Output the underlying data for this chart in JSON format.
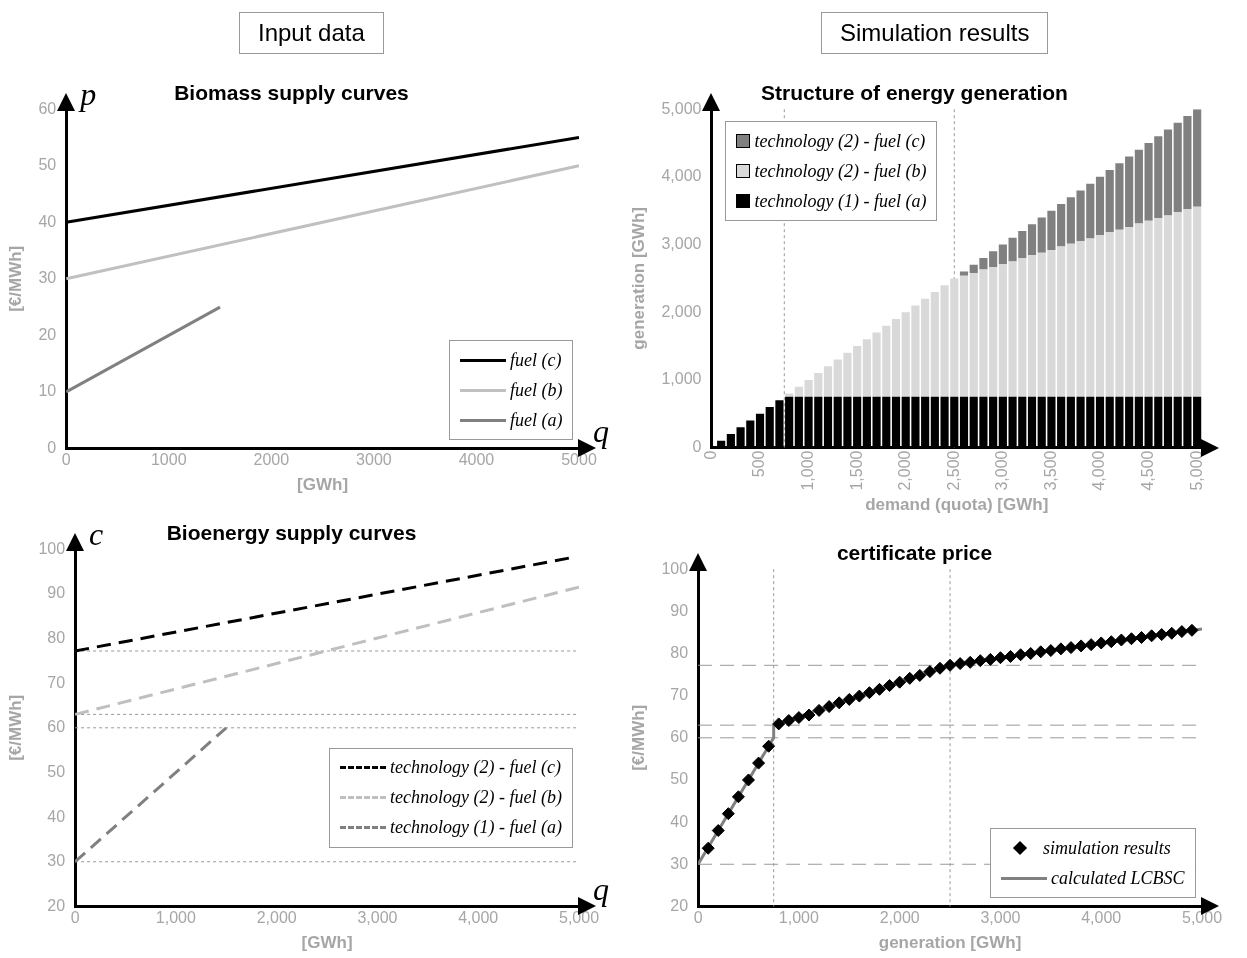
{
  "chart_data": [
    {
      "type": "line",
      "title": "Input data",
      "subtitle": "Biomass supply curves",
      "xlabel": "[GWh]",
      "ylabel": "[€/MWh]",
      "annotations": [
        "p",
        "q"
      ],
      "legend": "bottom right",
      "xlim": [
        0,
        5000
      ],
      "xticks": [
        0,
        1000,
        2000,
        3000,
        4000,
        5000
      ],
      "ylim": [
        0,
        60
      ],
      "yticks": [
        0,
        10,
        20,
        30,
        40,
        50,
        60
      ],
      "series": [
        {
          "name": "fuel (c)",
          "color": "#000000",
          "x": [
            0,
            5000
          ],
          "values": [
            40,
            55
          ]
        },
        {
          "name": "fuel (b)",
          "color": "#c0c0c0",
          "x": [
            0,
            5000
          ],
          "values": [
            30,
            50
          ]
        },
        {
          "name": "fuel (a)",
          "color": "#808080",
          "x": [
            0,
            1500
          ],
          "values": [
            10,
            25
          ]
        }
      ]
    },
    {
      "type": "bar",
      "stacked": true,
      "title": "Simulation results",
      "subtitle": "Structure of energy generation",
      "xlabel": "demand (quota) [GWh]",
      "ylabel": "generation [GWh]",
      "legend": "top left",
      "xlim": [
        0,
        5050
      ],
      "xticks": [
        0,
        {
          "value": 500,
          "label": "500"
        },
        {
          "value": 1000,
          "label": "1,000"
        },
        {
          "value": 1500,
          "label": "1,500"
        },
        {
          "value": 2000,
          "label": "2,000"
        },
        {
          "value": 2500,
          "label": "2,500"
        },
        {
          "value": 3000,
          "label": "3,000"
        },
        {
          "value": 3500,
          "label": "3,500"
        },
        {
          "value": 4000,
          "label": "4,000"
        },
        {
          "value": 4500,
          "label": "4,500"
        },
        {
          "value": 5000,
          "label": "5,000"
        }
      ],
      "ylim": [
        0,
        5000
      ],
      "yticks": [
        0,
        {
          "value": 1000,
          "label": "1,000"
        },
        {
          "value": 2000,
          "label": "2,000"
        },
        {
          "value": 3000,
          "label": "3,000"
        },
        {
          "value": 4000,
          "label": "4,000"
        },
        {
          "value": 5000,
          "label": "5,000"
        }
      ],
      "ref_lines": [
        {
          "axis": "x",
          "value": 750,
          "color": "#999999",
          "line_style": "dotted"
        },
        {
          "axis": "x",
          "value": 2500,
          "color": "#999999",
          "line_style": "dotted"
        }
      ],
      "x": [
        100,
        200,
        300,
        400,
        500,
        600,
        700,
        800,
        900,
        1000,
        1100,
        1200,
        1300,
        1400,
        1500,
        1600,
        1700,
        1800,
        1900,
        2000,
        2100,
        2200,
        2300,
        2400,
        2500,
        2600,
        2700,
        2800,
        2900,
        3000,
        3100,
        3200,
        3300,
        3400,
        3500,
        3600,
        3700,
        3800,
        3900,
        4000,
        4100,
        4200,
        4300,
        4400,
        4500,
        4600,
        4700,
        4800,
        4900,
        5000
      ],
      "series": [
        {
          "name": "technology (1) - fuel (a)",
          "color": "#000000",
          "values": [
            100,
            200,
            300,
            400,
            500,
            600,
            700,
            750,
            750,
            750,
            750,
            750,
            750,
            750,
            750,
            750,
            750,
            750,
            750,
            750,
            750,
            750,
            750,
            750,
            750,
            750,
            750,
            750,
            750,
            750,
            750,
            750,
            750,
            750,
            750,
            750,
            750,
            750,
            750,
            750,
            750,
            750,
            750,
            750,
            750,
            750,
            750,
            750,
            750,
            750
          ]
        },
        {
          "name": "technology (2) - fuel (b)",
          "color": "#d9d9d9",
          "values": [
            null,
            null,
            null,
            null,
            null,
            null,
            null,
            50,
            150,
            250,
            350,
            450,
            550,
            650,
            750,
            850,
            950,
            1050,
            1150,
            1250,
            1350,
            1450,
            1550,
            1650,
            1750,
            1790,
            1830,
            1880,
            1920,
            1960,
            2000,
            2050,
            2090,
            2130,
            2170,
            2220,
            2260,
            2300,
            2340,
            2390,
            2430,
            2470,
            2510,
            2560,
            2600,
            2640,
            2680,
            2730,
            2770,
            2810
          ]
        },
        {
          "name": "technology (2) - fuel (c)",
          "color": "#808080",
          "values": [
            null,
            null,
            null,
            null,
            null,
            null,
            null,
            null,
            null,
            null,
            null,
            null,
            null,
            null,
            null,
            null,
            null,
            null,
            null,
            null,
            null,
            null,
            null,
            null,
            null,
            60,
            120,
            170,
            230,
            290,
            350,
            400,
            460,
            520,
            580,
            630,
            690,
            750,
            810,
            860,
            920,
            980,
            1040,
            1090,
            1150,
            1210,
            1270,
            1320,
            1380,
            1440
          ]
        }
      ]
    },
    {
      "type": "line",
      "title": "Bioenergy supply curves",
      "xlabel": "[GWh]",
      "ylabel": "[€/MWh]",
      "annotations": [
        "c",
        "q"
      ],
      "legend": "right",
      "xlim": [
        0,
        5000
      ],
      "xticks": [
        0,
        {
          "value": 1000,
          "label": "1,000"
        },
        {
          "value": 2000,
          "label": "2,000"
        },
        {
          "value": 3000,
          "label": "3,000"
        },
        {
          "value": 4000,
          "label": "4,000"
        },
        {
          "value": 5000,
          "label": "5,000"
        }
      ],
      "ylim": [
        20,
        100
      ],
      "yticks": [
        20,
        30,
        40,
        50,
        60,
        70,
        80,
        90,
        100
      ],
      "ref_lines": [
        {
          "axis": "y",
          "value": 77.2,
          "color": "#999999",
          "line_style": "dotted"
        },
        {
          "axis": "y",
          "value": 63,
          "color": "#999999",
          "line_style": "dotted"
        },
        {
          "axis": "y",
          "value": 60,
          "color": "#999999",
          "line_style": "dotted"
        },
        {
          "axis": "y",
          "value": 30,
          "color": "#999999",
          "line_style": "dotted"
        }
      ],
      "series": [
        {
          "name": "technology (2) - fuel (c)",
          "color": "#000000",
          "line_style": "dashed",
          "x": [
            0,
            4900
          ],
          "values": [
            77.2,
            98
          ]
        },
        {
          "name": "technology (2) - fuel (b)",
          "color": "#bfbfbf",
          "line_style": "dashed",
          "x": [
            0,
            5000
          ],
          "values": [
            63,
            91.5
          ]
        },
        {
          "name": "technology (1) - fuel (a)",
          "color": "#808080",
          "line_style": "dashed",
          "x": [
            0,
            1500
          ],
          "values": [
            30,
            60
          ]
        }
      ]
    },
    {
      "type": "scatter",
      "title": "certificate price",
      "xlabel": "generation [GWh]",
      "ylabel": "[€/MWh]",
      "legend": "bottom right",
      "xlim": [
        0,
        5000
      ],
      "xticks": [
        0,
        {
          "value": 1000,
          "label": "1,000"
        },
        {
          "value": 2000,
          "label": "2,000"
        },
        {
          "value": 3000,
          "label": "3,000"
        },
        {
          "value": 4000,
          "label": "4,000"
        },
        {
          "value": 5000,
          "label": "5,000"
        }
      ],
      "ylim": [
        20,
        100
      ],
      "yticks": [
        20,
        30,
        40,
        50,
        60,
        70,
        80,
        90,
        100
      ],
      "ref_lines": [
        {
          "axis": "y",
          "value": 77.2,
          "color": "#999999",
          "line_style": "dashed"
        },
        {
          "axis": "y",
          "value": 63,
          "color": "#999999",
          "line_style": "dashed"
        },
        {
          "axis": "y",
          "value": 60,
          "color": "#999999",
          "line_style": "dashed"
        },
        {
          "axis": "y",
          "value": 30,
          "color": "#999999",
          "line_style": "dashed"
        },
        {
          "axis": "x",
          "value": 750,
          "color": "#999999",
          "line_style": "dotted"
        },
        {
          "axis": "x",
          "value": 2500,
          "color": "#999999",
          "line_style": "dotted"
        }
      ],
      "series": [
        {
          "name": "simulation results",
          "type": "scatter",
          "marker": "diamond",
          "color": "#000000",
          "x": [
            100,
            200,
            300,
            400,
            500,
            600,
            700,
            800,
            900,
            1000,
            1100,
            1200,
            1300,
            1400,
            1500,
            1600,
            1700,
            1800,
            1900,
            2000,
            2100,
            2200,
            2300,
            2400,
            2500,
            2600,
            2700,
            2800,
            2900,
            3000,
            3100,
            3200,
            3300,
            3400,
            3500,
            3600,
            3700,
            3800,
            3900,
            4000,
            4100,
            4200,
            4300,
            4400,
            4500,
            4600,
            4700,
            4800,
            4900
          ],
          "values": [
            33.8,
            38,
            42,
            46,
            50,
            54,
            58,
            63.3,
            64.1,
            64.8,
            65.4,
            66.5,
            67.4,
            68.3,
            69.1,
            69.9,
            70.7,
            71.5,
            72.4,
            73.2,
            74.1,
            74.8,
            75.7,
            76.5,
            77.2,
            77.6,
            77.9,
            78.3,
            78.6,
            79.0,
            79.3,
            79.7,
            80.0,
            80.4,
            80.7,
            81.1,
            81.4,
            81.8,
            82.1,
            82.5,
            82.8,
            83.2,
            83.5,
            83.8,
            84.2,
            84.5,
            84.8,
            85.2,
            85.5
          ]
        },
        {
          "name": "calculated LCBSC",
          "type": "line",
          "color": "#808080",
          "x": [
            0,
            750,
            750,
            2500,
            3750,
            5000
          ],
          "values": [
            30,
            60,
            63,
            77.2,
            81.5,
            85.8
          ]
        }
      ]
    }
  ]
}
